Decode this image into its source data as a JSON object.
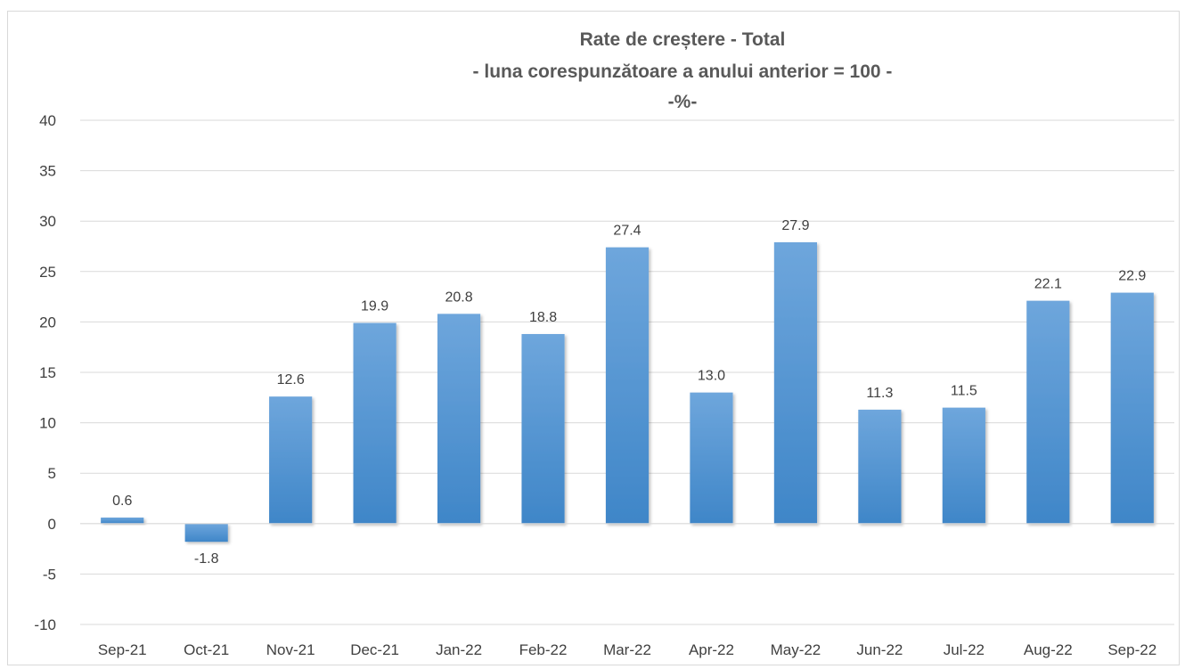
{
  "chart_data": {
    "type": "bar",
    "title": [
      "Rate de creștere - Total",
      "- luna corespunzătoare a anului anterior = 100 -",
      "-%-"
    ],
    "xlabel": "",
    "ylabel": "",
    "categories": [
      "Sep-21",
      "Oct-21",
      "Nov-21",
      "Dec-21",
      "Jan-22",
      "Feb-22",
      "Mar-22",
      "Apr-22",
      "May-22",
      "Jun-22",
      "Jul-22",
      "Aug-22",
      "Sep-22"
    ],
    "series": [
      {
        "values": [
          0.6,
          -1.8,
          12.6,
          19.9,
          20.8,
          18.8,
          27.4,
          13.0,
          27.9,
          11.3,
          11.5,
          22.1,
          22.9
        ],
        "labels": [
          "0.6",
          "-1.8",
          "12.6",
          "19.9",
          "20.8",
          "18.8",
          "27.4",
          "13.0",
          "27.9",
          "11.3",
          "11.5",
          "22.1",
          "22.9"
        ]
      }
    ],
    "ylim": [
      -10,
      40
    ],
    "yticks": [
      -10,
      -5,
      0,
      5,
      10,
      15,
      20,
      25,
      30,
      35,
      40
    ],
    "grid": true,
    "legend": "none",
    "bar_color": "#5b9bd5"
  }
}
